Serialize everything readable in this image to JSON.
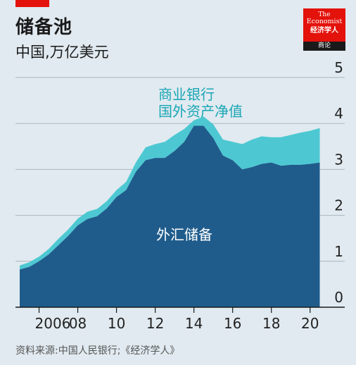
{
  "header": {
    "title": "储备池",
    "subtitle": "中国,万亿美元"
  },
  "logo": {
    "line1": "The",
    "line2": "Economist",
    "line3": "经济学人",
    "line4": "商论"
  },
  "source": "资料来源:中国人民银行;《经济学人》",
  "colors": {
    "background": "#e1eaf0",
    "fx_reserves": "#1f5c8c",
    "bank_nfa": "#4dc8d2",
    "grid": "#a7b6c1",
    "accent": "#e3120b",
    "annotation": "#1aa6b5"
  },
  "chart_data": {
    "type": "area",
    "stacked": true,
    "x_tick_labels": [
      "2006",
      "08",
      "10",
      "12",
      "14",
      "16",
      "18",
      "20"
    ],
    "y_tick_labels": [
      "0",
      "1",
      "2",
      "3",
      "4",
      "5"
    ],
    "xlim": [
      2005.0,
      2020.7
    ],
    "ylim": [
      0,
      5
    ],
    "grid": "horizontal",
    "y_axis_side": "right",
    "annotations": {
      "bank_nfa": [
        "商业银行",
        "国外资产净值"
      ],
      "fx_reserves": "外汇储备"
    },
    "x": [
      2005.0,
      2005.5,
      2006.0,
      2006.5,
      2007.0,
      2007.5,
      2008.0,
      2008.5,
      2009.0,
      2009.5,
      2010.0,
      2010.5,
      2011.0,
      2011.5,
      2012.0,
      2012.5,
      2013.0,
      2013.5,
      2014.0,
      2014.5,
      2015.0,
      2015.5,
      2016.0,
      2016.5,
      2017.0,
      2017.5,
      2018.0,
      2018.5,
      2019.0,
      2019.5,
      2020.0,
      2020.5
    ],
    "series": [
      {
        "name": "外汇储备",
        "values": [
          0.82,
          0.88,
          1.0,
          1.15,
          1.35,
          1.55,
          1.78,
          1.92,
          1.98,
          2.15,
          2.4,
          2.55,
          2.95,
          3.2,
          3.25,
          3.25,
          3.4,
          3.6,
          3.95,
          3.95,
          3.68,
          3.3,
          3.2,
          3.0,
          3.05,
          3.12,
          3.15,
          3.08,
          3.1,
          3.1,
          3.12,
          3.15
        ]
      },
      {
        "name": "商业银行国外资产净值",
        "values": [
          0.09,
          0.1,
          0.1,
          0.12,
          0.14,
          0.14,
          0.15,
          0.16,
          0.16,
          0.16,
          0.15,
          0.18,
          0.2,
          0.28,
          0.3,
          0.35,
          0.35,
          0.28,
          0.12,
          0.2,
          0.3,
          0.35,
          0.4,
          0.55,
          0.6,
          0.6,
          0.55,
          0.62,
          0.65,
          0.7,
          0.72,
          0.75
        ]
      }
    ]
  }
}
